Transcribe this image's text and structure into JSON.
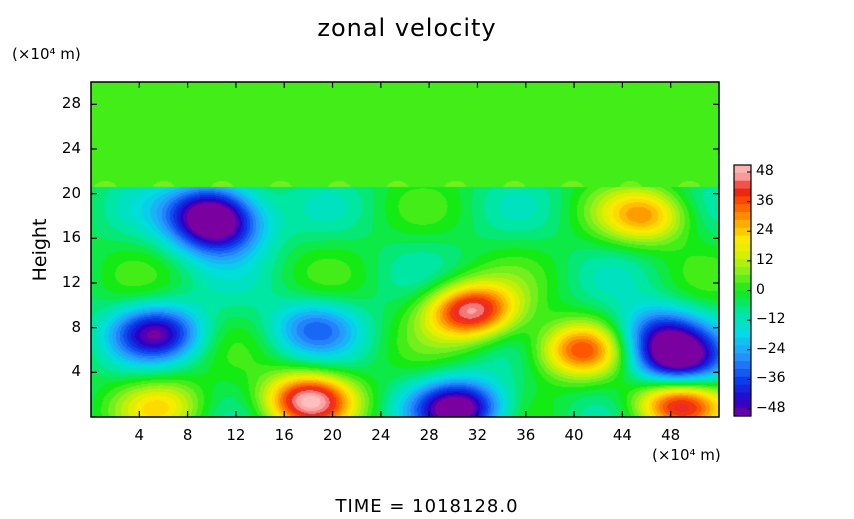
{
  "chart_data": {
    "type": "heatmap",
    "title": "zonal velocity",
    "ylabel": "Height",
    "y_unit": "(×10⁴ m)",
    "x_unit": "(×10⁴ m)",
    "xlim": [
      0,
      52
    ],
    "ylim": [
      0,
      30
    ],
    "x_ticks": [
      "4",
      "8",
      "12",
      "16",
      "20",
      "24",
      "28",
      "32",
      "36",
      "40",
      "44",
      "48"
    ],
    "y_ticks": [
      "28",
      "24",
      "20",
      "16",
      "12",
      "8",
      "4"
    ],
    "colorbar": {
      "range": [
        -48,
        48
      ],
      "ticks": [
        "48",
        "36",
        "24",
        "12",
        "0",
        "−12",
        "−24",
        "−36",
        "−48"
      ]
    },
    "features": [
      {
        "x": 31.5,
        "y": 9.5,
        "value": 48
      },
      {
        "x": 30.5,
        "y": 0.8,
        "value": -48
      },
      {
        "x": 18,
        "y": 1.5,
        "value": 48
      },
      {
        "x": 48.5,
        "y": 1.2,
        "value": 42
      },
      {
        "x": 48.5,
        "y": 5,
        "value": -44
      },
      {
        "x": 47,
        "y": 7.5,
        "value": -30
      },
      {
        "x": 10,
        "y": 18.5,
        "value": -42
      },
      {
        "x": 10.5,
        "y": 16.5,
        "value": -30
      },
      {
        "x": 18.5,
        "y": 8,
        "value": -22
      },
      {
        "x": 5.5,
        "y": 7.5,
        "value": -38
      },
      {
        "x": 40.5,
        "y": 6,
        "value": 36
      },
      {
        "x": 46,
        "y": 18,
        "value": 28
      },
      {
        "x": 6,
        "y": 1,
        "value": 20
      }
    ],
    "footer": "TIME  =  1018128.0"
  }
}
